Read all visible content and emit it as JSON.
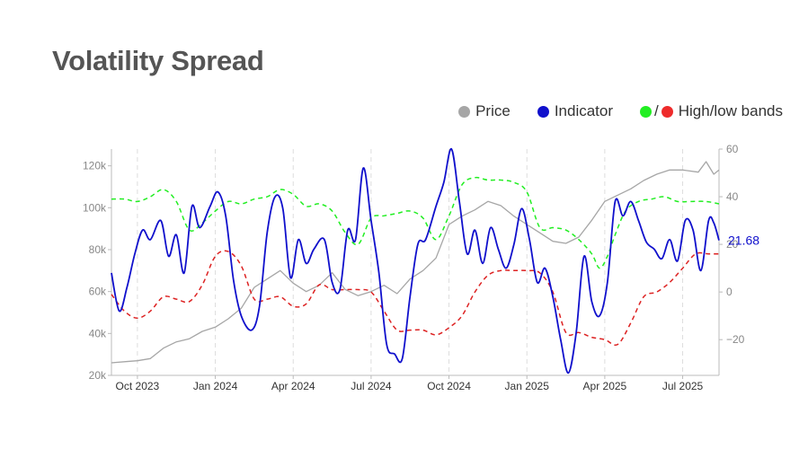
{
  "title": "Volatility Spread",
  "legend": {
    "price_label": "Price",
    "indicator_label": "Indicator",
    "bands_label": "High/low bands",
    "bands_sep": "/"
  },
  "colors": {
    "price": "#a6a6a6",
    "indicator": "#1010cc",
    "high_band": "#22ee22",
    "low_band": "#dd2222",
    "title": "#555555",
    "last_value": "#1010cc"
  },
  "chart_data": {
    "type": "line",
    "x_ticks": [
      "Oct 2023",
      "Jan 2024",
      "Apr 2024",
      "Jul 2024",
      "Oct 2024",
      "Jan 2025",
      "Apr 2025",
      "Jul 2025"
    ],
    "y_left_ticks": [
      "20k",
      "40k",
      "60k",
      "80k",
      "100k",
      "120k"
    ],
    "y_left_values": [
      20000,
      40000,
      60000,
      80000,
      100000,
      120000
    ],
    "y_left_range": [
      20000,
      128000
    ],
    "y_right_ticks": [
      "−20",
      "0",
      "20",
      "40",
      "60"
    ],
    "y_right_values": [
      -20,
      0,
      20,
      40,
      60
    ],
    "y_right_range": [
      -35,
      60
    ],
    "x_range_months": [
      0,
      23.4
    ],
    "tick_months": [
      1.0,
      4.0,
      7.0,
      10.0,
      13.0,
      16.0,
      19.0,
      22.0
    ],
    "last_value_label": "21.68",
    "series": [
      {
        "name": "Price",
        "axis": "left",
        "points": [
          [
            0,
            26000
          ],
          [
            0.5,
            26500
          ],
          [
            1,
            27000
          ],
          [
            1.5,
            28000
          ],
          [
            2,
            33000
          ],
          [
            2.5,
            36000
          ],
          [
            3,
            37500
          ],
          [
            3.5,
            41000
          ],
          [
            4,
            43000
          ],
          [
            4.5,
            47000
          ],
          [
            5,
            52000
          ],
          [
            5.5,
            62000
          ],
          [
            6,
            66000
          ],
          [
            6.5,
            70000
          ],
          [
            7,
            64000
          ],
          [
            7.5,
            60000
          ],
          [
            8,
            63000
          ],
          [
            8.5,
            69000
          ],
          [
            9,
            61000
          ],
          [
            9.5,
            58000
          ],
          [
            10,
            60000
          ],
          [
            10.5,
            63000
          ],
          [
            11,
            59000
          ],
          [
            11.5,
            66000
          ],
          [
            12,
            70000
          ],
          [
            12.5,
            76000
          ],
          [
            13,
            92000
          ],
          [
            13.5,
            96000
          ],
          [
            14,
            99000
          ],
          [
            14.5,
            103000
          ],
          [
            15,
            101000
          ],
          [
            15.5,
            96000
          ],
          [
            16,
            92000
          ],
          [
            16.5,
            88000
          ],
          [
            17,
            84000
          ],
          [
            17.5,
            83000
          ],
          [
            18,
            86000
          ],
          [
            18.5,
            94000
          ],
          [
            19,
            103000
          ],
          [
            19.5,
            106000
          ],
          [
            20,
            109000
          ],
          [
            20.5,
            113000
          ],
          [
            21,
            116000
          ],
          [
            21.5,
            118000
          ],
          [
            22,
            118000
          ],
          [
            22.6,
            117000
          ],
          [
            22.9,
            122000
          ],
          [
            23.2,
            116000
          ],
          [
            23.4,
            118000
          ]
        ]
      },
      {
        "name": "Indicator",
        "axis": "right",
        "points": [
          [
            0,
            8
          ],
          [
            0.3,
            -8
          ],
          [
            0.6,
            2
          ],
          [
            0.9,
            16
          ],
          [
            1.2,
            26
          ],
          [
            1.5,
            22
          ],
          [
            1.9,
            30
          ],
          [
            2.2,
            15
          ],
          [
            2.5,
            24
          ],
          [
            2.8,
            8
          ],
          [
            3.1,
            36
          ],
          [
            3.4,
            27
          ],
          [
            3.8,
            36
          ],
          [
            4.1,
            42
          ],
          [
            4.4,
            32
          ],
          [
            4.7,
            5
          ],
          [
            5.0,
            -10
          ],
          [
            5.4,
            -16
          ],
          [
            5.7,
            -6
          ],
          [
            6.0,
            25
          ],
          [
            6.3,
            40
          ],
          [
            6.6,
            35
          ],
          [
            6.9,
            6
          ],
          [
            7.2,
            22
          ],
          [
            7.5,
            12
          ],
          [
            7.8,
            18
          ],
          [
            8.2,
            22
          ],
          [
            8.5,
            4
          ],
          [
            8.8,
            1
          ],
          [
            9.1,
            26
          ],
          [
            9.4,
            22
          ],
          [
            9.7,
            52
          ],
          [
            10.0,
            30
          ],
          [
            10.3,
            8
          ],
          [
            10.6,
            -22
          ],
          [
            10.9,
            -26
          ],
          [
            11.2,
            -28
          ],
          [
            11.5,
            -2
          ],
          [
            11.8,
            20
          ],
          [
            12.1,
            22
          ],
          [
            12.5,
            36
          ],
          [
            12.8,
            46
          ],
          [
            13.1,
            60
          ],
          [
            13.4,
            38
          ],
          [
            13.7,
            16
          ],
          [
            14.0,
            26
          ],
          [
            14.3,
            12
          ],
          [
            14.6,
            27
          ],
          [
            14.9,
            18
          ],
          [
            15.2,
            10
          ],
          [
            15.5,
            20
          ],
          [
            15.8,
            35
          ],
          [
            16.1,
            22
          ],
          [
            16.4,
            4
          ],
          [
            16.7,
            10
          ],
          [
            17.0,
            -2
          ],
          [
            17.3,
            -20
          ],
          [
            17.6,
            -34
          ],
          [
            17.9,
            -17
          ],
          [
            18.2,
            15
          ],
          [
            18.5,
            -4
          ],
          [
            18.8,
            -10
          ],
          [
            19.1,
            4
          ],
          [
            19.4,
            38
          ],
          [
            19.7,
            32
          ],
          [
            20.0,
            38
          ],
          [
            20.3,
            30
          ],
          [
            20.6,
            21
          ],
          [
            20.9,
            18
          ],
          [
            21.2,
            14
          ],
          [
            21.5,
            22
          ],
          [
            21.8,
            13
          ],
          [
            22.1,
            30
          ],
          [
            22.4,
            26
          ],
          [
            22.7,
            9
          ],
          [
            23.0,
            30
          ],
          [
            23.2,
            29
          ],
          [
            23.4,
            21.68
          ]
        ]
      },
      {
        "name": "High band",
        "axis": "right",
        "points": [
          [
            0,
            39
          ],
          [
            0.5,
            39
          ],
          [
            1,
            38
          ],
          [
            1.5,
            40
          ],
          [
            2,
            43
          ],
          [
            2.5,
            38
          ],
          [
            3,
            26
          ],
          [
            3.5,
            29
          ],
          [
            4,
            34
          ],
          [
            4.5,
            38
          ],
          [
            5,
            37
          ],
          [
            5.5,
            39
          ],
          [
            6,
            40
          ],
          [
            6.5,
            43
          ],
          [
            7,
            41
          ],
          [
            7.5,
            36
          ],
          [
            8,
            37
          ],
          [
            8.5,
            34
          ],
          [
            9,
            25
          ],
          [
            9.5,
            20
          ],
          [
            10,
            31
          ],
          [
            10.5,
            32
          ],
          [
            11,
            33
          ],
          [
            11.5,
            34
          ],
          [
            12,
            31
          ],
          [
            12.5,
            22
          ],
          [
            13,
            32
          ],
          [
            13.5,
            45
          ],
          [
            14,
            48
          ],
          [
            14.5,
            47
          ],
          [
            15,
            47
          ],
          [
            15.5,
            46
          ],
          [
            16,
            42
          ],
          [
            16.5,
            27
          ],
          [
            17,
            27
          ],
          [
            17.5,
            26
          ],
          [
            18,
            22
          ],
          [
            18.5,
            16
          ],
          [
            18.8,
            10
          ],
          [
            19.1,
            15
          ],
          [
            19.4,
            24
          ],
          [
            19.8,
            34
          ],
          [
            20.3,
            38
          ],
          [
            20.8,
            39
          ],
          [
            21.3,
            40
          ],
          [
            21.8,
            38
          ],
          [
            22.3,
            38
          ],
          [
            22.9,
            38
          ],
          [
            23.4,
            37
          ]
        ]
      },
      {
        "name": "Low band",
        "axis": "right",
        "points": [
          [
            0,
            -1
          ],
          [
            0.5,
            -8
          ],
          [
            1,
            -11
          ],
          [
            1.5,
            -8
          ],
          [
            2,
            -2
          ],
          [
            2.5,
            -3
          ],
          [
            3,
            -4
          ],
          [
            3.5,
            3
          ],
          [
            4,
            15
          ],
          [
            4.5,
            17
          ],
          [
            5,
            11
          ],
          [
            5.5,
            -3
          ],
          [
            6,
            -3
          ],
          [
            6.5,
            -2
          ],
          [
            7,
            -6
          ],
          [
            7.5,
            -5
          ],
          [
            8,
            3
          ],
          [
            8.5,
            1
          ],
          [
            9,
            1
          ],
          [
            9.5,
            1
          ],
          [
            10,
            0
          ],
          [
            10.5,
            -8
          ],
          [
            11,
            -16
          ],
          [
            11.5,
            -16
          ],
          [
            12,
            -16
          ],
          [
            12.5,
            -18
          ],
          [
            13,
            -15
          ],
          [
            13.5,
            -10
          ],
          [
            14,
            0
          ],
          [
            14.5,
            7
          ],
          [
            15,
            9
          ],
          [
            15.5,
            9
          ],
          [
            16,
            9
          ],
          [
            16.5,
            8
          ],
          [
            17,
            0
          ],
          [
            17.5,
            -17
          ],
          [
            18,
            -17
          ],
          [
            18.5,
            -19
          ],
          [
            19,
            -20
          ],
          [
            19.5,
            -22
          ],
          [
            20,
            -13
          ],
          [
            20.5,
            -2
          ],
          [
            21,
            0
          ],
          [
            21.5,
            4
          ],
          [
            22,
            10
          ],
          [
            22.5,
            16
          ],
          [
            23,
            16
          ],
          [
            23.4,
            16
          ]
        ]
      }
    ]
  }
}
